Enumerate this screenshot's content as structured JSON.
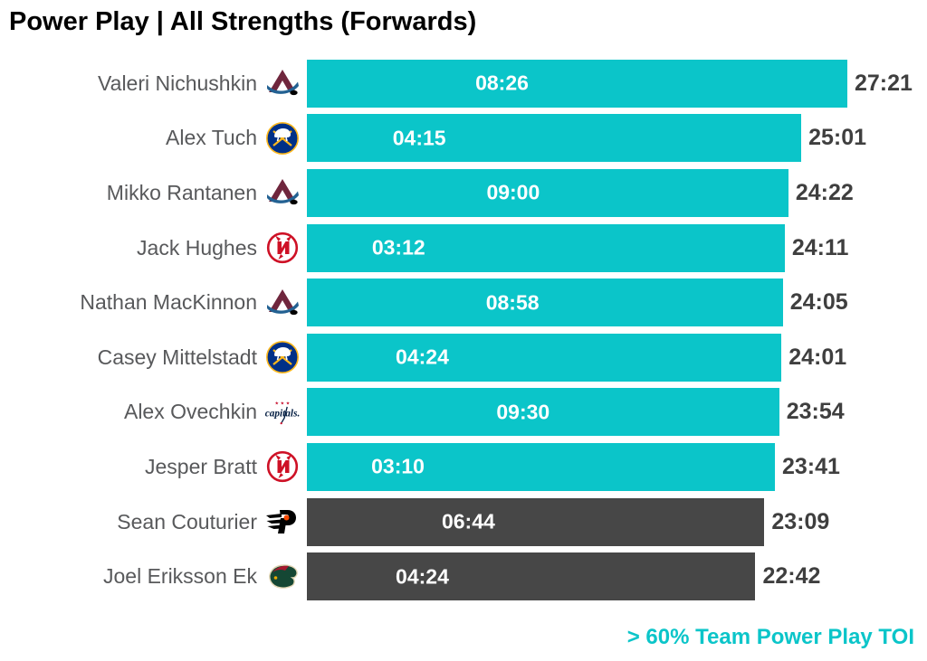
{
  "title": "Power Play | All Strengths (Forwards)",
  "legend": "> 60% Team Power Play TOI",
  "colors": {
    "highlight_bar": "#0bc5c9",
    "regular_bar": "#474747",
    "player_name_text": "#58595b",
    "total_label_text": "#3f3f3f",
    "bar_label_text": "#ffffff",
    "legend_text": "#0bc5c9",
    "title_text": "#000000",
    "background": "#ffffff"
  },
  "chart_data": {
    "type": "bar",
    "orientation": "horizontal",
    "title": "Power Play | All Strengths (Forwards)",
    "value_format": "mm:ss",
    "bar_length_field": "total_toi",
    "inside_label_field": "pp_toi",
    "highlight_meaning": "> 60% Team Power Play TOI (teal bars); gray bars below 60%",
    "legend_position": "bottom-right",
    "grid": false,
    "rows": [
      {
        "name": "Valeri Nichushkin",
        "team": "avalanche",
        "pp_toi": "08:26",
        "total_toi": "27:21",
        "highlight": true
      },
      {
        "name": "Alex Tuch",
        "team": "sabres",
        "pp_toi": "04:15",
        "total_toi": "25:01",
        "highlight": true
      },
      {
        "name": "Mikko Rantanen",
        "team": "avalanche",
        "pp_toi": "09:00",
        "total_toi": "24:22",
        "highlight": true
      },
      {
        "name": "Jack Hughes",
        "team": "devils",
        "pp_toi": "03:12",
        "total_toi": "24:11",
        "highlight": true
      },
      {
        "name": "Nathan MacKinnon",
        "team": "avalanche",
        "pp_toi": "08:58",
        "total_toi": "24:05",
        "highlight": true
      },
      {
        "name": "Casey Mittelstadt",
        "team": "sabres",
        "pp_toi": "04:24",
        "total_toi": "24:01",
        "highlight": true
      },
      {
        "name": "Alex Ovechkin",
        "team": "capitals",
        "pp_toi": "09:30",
        "total_toi": "23:54",
        "highlight": true
      },
      {
        "name": "Jesper Bratt",
        "team": "devils",
        "pp_toi": "03:10",
        "total_toi": "23:41",
        "highlight": true
      },
      {
        "name": "Sean Couturier",
        "team": "flyers",
        "pp_toi": "06:44",
        "total_toi": "23:09",
        "highlight": false
      },
      {
        "name": "Joel Eriksson Ek",
        "team": "wild",
        "pp_toi": "04:24",
        "total_toi": "22:42",
        "highlight": false
      }
    ]
  }
}
